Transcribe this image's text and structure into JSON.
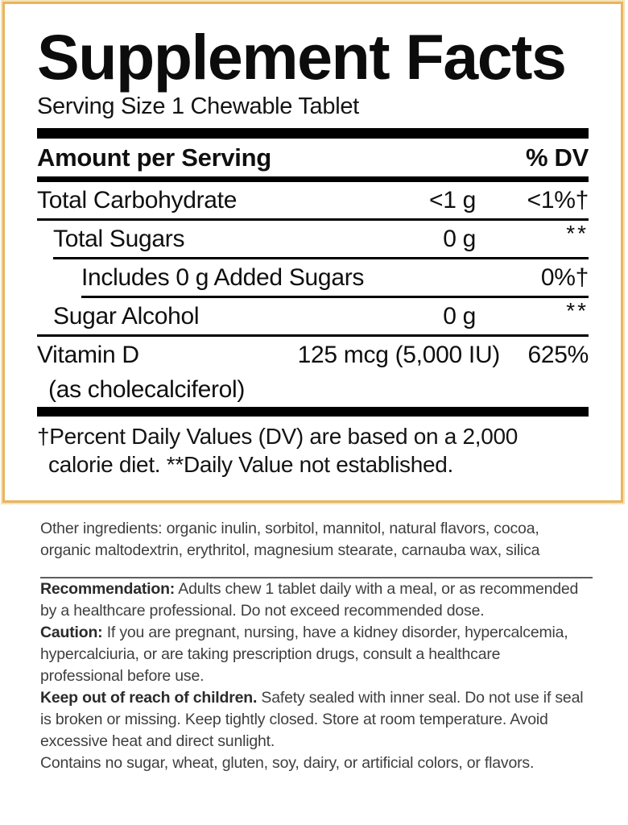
{
  "panel": {
    "title": "Supplement Facts",
    "serving_size": "Serving Size 1 Chewable Tablet",
    "amount_header": "Amount per Serving",
    "dv_header": "% DV",
    "rows": [
      {
        "name": "Total Carbohydrate",
        "amount": "<1 g",
        "dv": "<1%†"
      },
      {
        "name": "Total Sugars",
        "amount": "0 g",
        "dv": "**"
      },
      {
        "name": "Includes 0 g Added Sugars",
        "amount": "",
        "dv": "0%†"
      },
      {
        "name": "Sugar Alcohol",
        "amount": "0 g",
        "dv": "**"
      },
      {
        "name": "Vitamin D",
        "sub_name": "(as cholecalciferol)",
        "amount": "125 mcg (5,000 IU)",
        "dv": "625%"
      }
    ],
    "footnote": "†Percent Daily Values (DV) are based on a 2,000\ncalorie diet. **Daily Value not established."
  },
  "info": {
    "other_ingredients": "Other ingredients: organic inulin, sorbitol, mannitol, natural flavors, cocoa,\norganic maltodextrin, erythritol, magnesium stearate, carnauba wax, silica",
    "recommendation": {
      "lead": "Recommendation:",
      "text": "Adults chew 1 tablet daily with a meal, or as recommended\nby a healthcare professional. Do not exceed recommended dose."
    },
    "caution": {
      "lead": "Caution:",
      "text": "If you are pregnant, nursing, have a kidney disorder, hypercalcemia,\nhypercalciuria, or are taking prescription drugs, consult a healthcare\nprofessional before use."
    },
    "keep_out": {
      "lead": "Keep out of reach of children.",
      "text": "Safety sealed with inner seal. Do not use if seal\nis broken or missing. Keep tightly closed. Store at room temperature. Avoid\nexcessive heat and direct sunlight."
    },
    "contains": "Contains no sugar, wheat, gluten, soy, dairy, or artificial colors, or flavors."
  },
  "colors": {
    "panel_border_gold": "#e8b55e",
    "panel_border_halo": "#f6e2b4",
    "rule_black": "#000000",
    "divider_gray": "#5e5e5e",
    "body_text_gray": "#3f3f3f"
  }
}
